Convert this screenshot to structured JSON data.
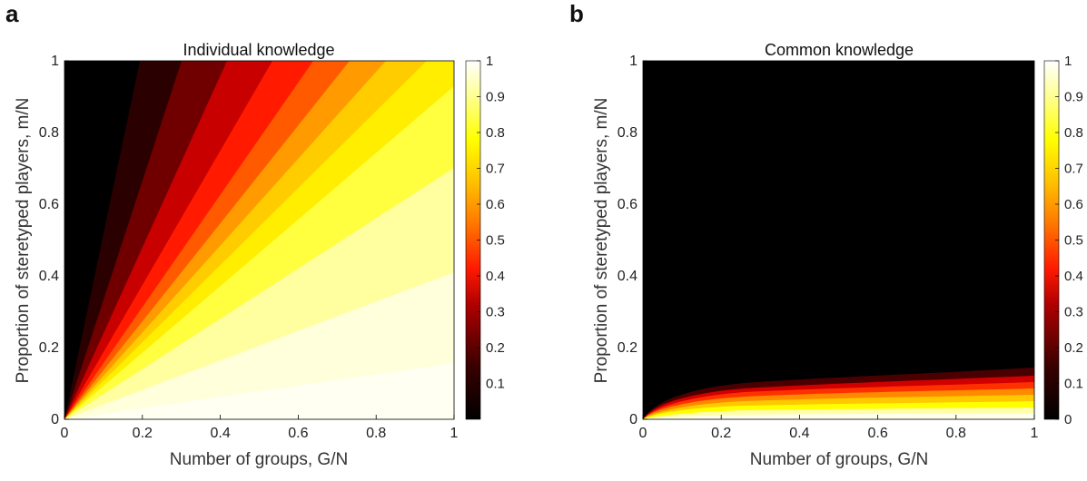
{
  "chart_data": [
    {
      "type": "heatmap",
      "panel": "a",
      "title": "Individual knowledge",
      "xlabel": "Number of groups, G/N",
      "ylabel": "Proportion of steretyped players, m/N",
      "xlim": [
        0,
        1
      ],
      "ylim": [
        0,
        1
      ],
      "x_ticks": [
        "0",
        "0.2",
        "0.4",
        "0.6",
        "0.8",
        "1"
      ],
      "y_ticks": [
        "0",
        "0.2",
        "0.4",
        "0.6",
        "0.8",
        "1"
      ],
      "colormap": "hot",
      "colorbar_range": [
        0,
        1
      ],
      "colorbar_ticks": [
        "0.1",
        "0.2",
        "0.3",
        "0.4",
        "0.5",
        "0.6",
        "0.7",
        "0.8",
        "0.9",
        "1"
      ],
      "description_values": {
        "contour_0_5_line": [
          [
            0,
            0
          ],
          [
            0.6,
            1.0
          ]
        ],
        "contour_0_1_line": [
          [
            0,
            0
          ],
          [
            0.22,
            1.0
          ]
        ],
        "contour_0_9_line": [
          [
            0,
            0
          ],
          [
            1.0,
            0.95
          ]
        ]
      }
    },
    {
      "type": "heatmap",
      "panel": "b",
      "title": "Common knowledge",
      "xlabel": "Number of groups, G/N",
      "ylabel": "Proportion of steretyped players, m/N",
      "xlim": [
        0,
        1
      ],
      "ylim": [
        0,
        1
      ],
      "x_ticks": [
        "0",
        "0.2",
        "0.4",
        "0.6",
        "0.8",
        "1"
      ],
      "y_ticks": [
        "0",
        "0.2",
        "0.4",
        "0.6",
        "0.8",
        "1"
      ],
      "colormap": "hot",
      "colorbar_range": [
        0,
        1
      ],
      "colorbar_ticks": [
        "0",
        "0.1",
        "0.2",
        "0.3",
        "0.4",
        "0.5",
        "0.6",
        "0.7",
        "0.8",
        "0.9",
        "1"
      ],
      "description_values": {
        "contour_0_5_boundary": [
          [
            0,
            0
          ],
          [
            0.05,
            0.05
          ],
          [
            0.2,
            0.085
          ],
          [
            0.5,
            0.1
          ],
          [
            1.0,
            0.11
          ]
        ]
      }
    }
  ],
  "colors": {
    "black": "#000000",
    "dark_red": "#5a0000",
    "red": "#ff1a00",
    "orange": "#ff9900",
    "yellow": "#ffff00",
    "pale_yellow": "#ffffe6",
    "white": "#ffffff"
  }
}
